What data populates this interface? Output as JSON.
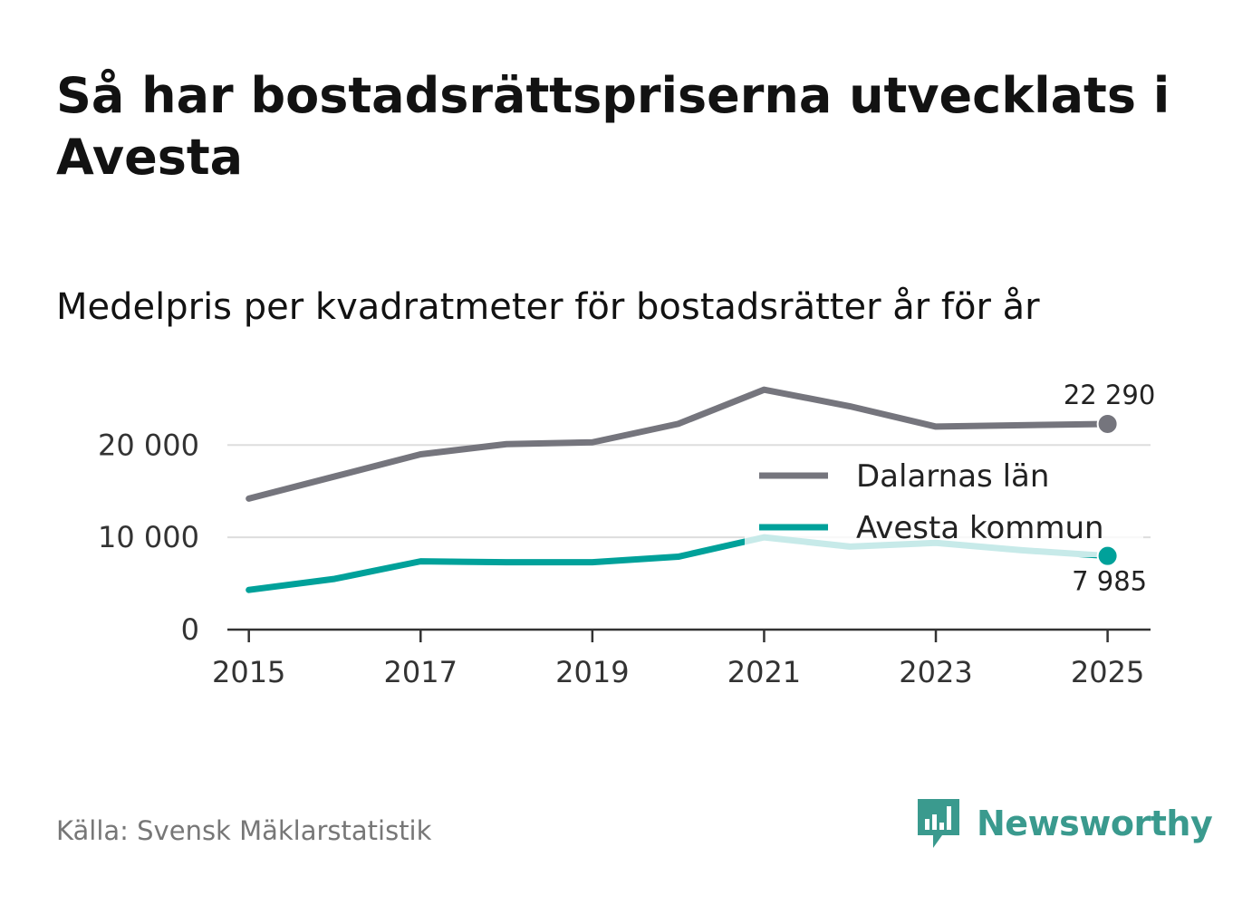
{
  "title": "Så har bostadsrättspriserna utvecklats i Avesta",
  "subtitle": "Medelpris per kvadratmeter för bostadsrätter år för år",
  "source": "Källa: Svensk Mäklarstatistik",
  "brand": {
    "name": "Newsworthy",
    "color": "#3a9a8e",
    "icon": "newsworthy-logo-icon"
  },
  "chart_data": {
    "type": "line",
    "title": "Medelpris per kvadratmeter för bostadsrätter år för år",
    "x": [
      2015,
      2016,
      2017,
      2018,
      2019,
      2020,
      2021,
      2022,
      2023,
      2024,
      2025
    ],
    "x_ticks": [
      2015,
      2017,
      2019,
      2021,
      2023,
      2025
    ],
    "x_tick_labels": [
      "2015",
      "2017",
      "2019",
      "2021",
      "2023",
      "2025"
    ],
    "y_ticks": [
      0,
      10000,
      20000
    ],
    "y_tick_labels": [
      "0",
      "10 000",
      "20 000"
    ],
    "xlim": [
      2014.75,
      2025.5
    ],
    "ylim": [
      0,
      27000
    ],
    "grid": true,
    "legend_position": "right",
    "series": [
      {
        "name": "Dalarnas län",
        "color": "#75757d",
        "values": [
          14200,
          16600,
          19000,
          20100,
          20300,
          22300,
          26000,
          24200,
          22000,
          22150,
          22290
        ],
        "end_label": "22 290"
      },
      {
        "name": "Avesta kommun",
        "color": "#00a19a",
        "values": [
          4300,
          5500,
          7400,
          7300,
          7300,
          7900,
          10000,
          9000,
          9400,
          8600,
          7985
        ],
        "end_label": "7 985"
      }
    ]
  }
}
